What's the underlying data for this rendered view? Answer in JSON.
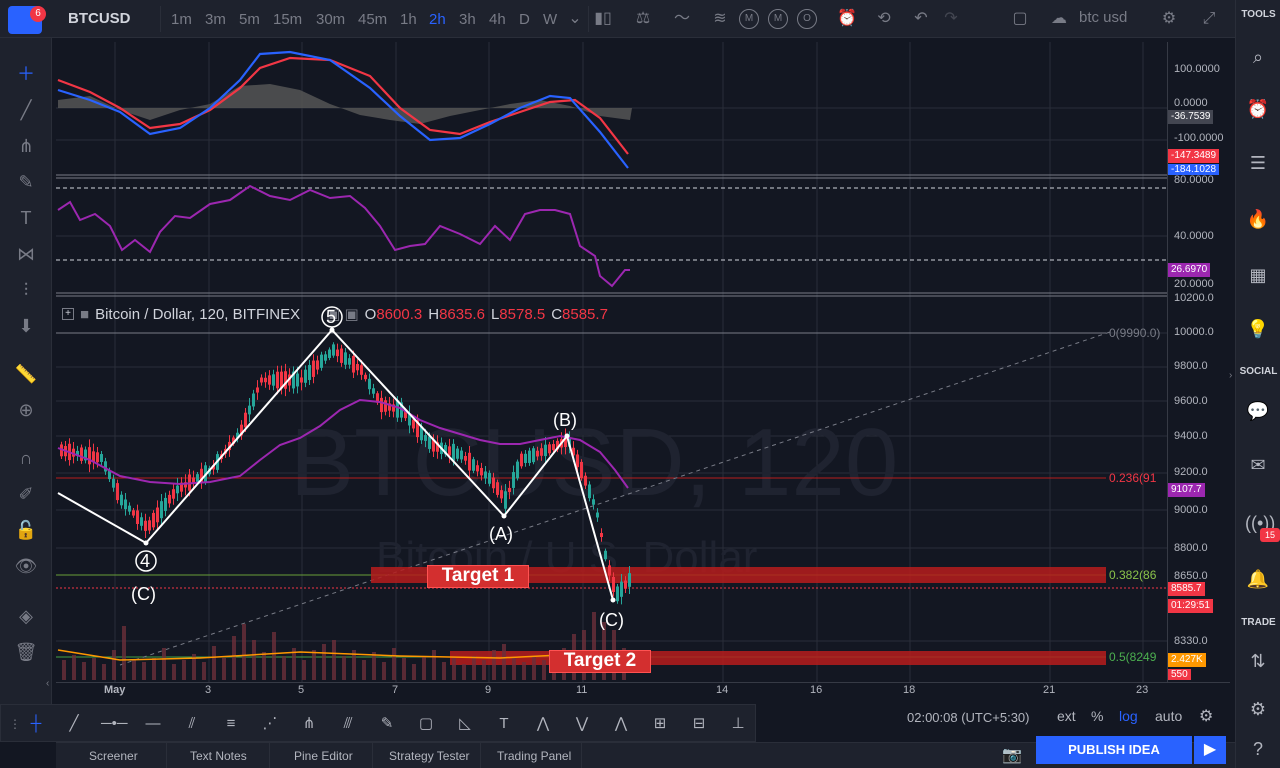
{
  "header": {
    "symbol": "BTCUSD",
    "notification_count": "6",
    "timeframes": [
      "1m",
      "3m",
      "5m",
      "15m",
      "30m",
      "45m",
      "1h",
      "2h",
      "3h",
      "4h",
      "D",
      "W"
    ],
    "active_timeframe": "2h",
    "indicator_icons": [
      "M",
      "M",
      "O"
    ],
    "search_value": "btc usd"
  },
  "right_panel": {
    "tools_label": "TOOLS",
    "social_label": "SOCIAL",
    "trade_label": "TRADE",
    "notif_badge": "15"
  },
  "chart": {
    "legend": {
      "title": "Bitcoin / Dollar, 120, BITFINEX",
      "o_label": "O",
      "o_value": "8600.3",
      "h_label": "H",
      "h_value": "8635.6",
      "l_label": "L",
      "l_value": "8578.5",
      "c_label": "C",
      "c_value": "8585.7"
    },
    "watermark": "BTCUSD, 120",
    "watermark_sub": "Bitcoin / U.S. Dollar",
    "target1": "Target 1",
    "target2": "Target 2",
    "waves": [
      "4",
      "(C)",
      "5",
      "(A)",
      "(B)",
      "(C)"
    ],
    "fib": [
      "0(9990.0)",
      "0.236(91",
      "0.382(86",
      "0.5(8249"
    ],
    "price_axis": [
      "10200.0",
      "10000.0",
      "9800.0",
      "9600.0",
      "9400.0",
      "9200.0",
      "9000.0",
      "8800.0",
      "8650.0",
      "8330.0"
    ],
    "price_tags": {
      "ma": "9107.7",
      "last": "8585.7",
      "countdown": "01:29:51",
      "vol": "2.427K",
      "vol2": "550"
    },
    "macd_axis": [
      "100.0000",
      "0.0000",
      "-100.0000"
    ],
    "macd_tags": {
      "hist": "-36.7539",
      "signal": "-147.3489",
      "macd": "-184.1028"
    },
    "rsi_axis": [
      "80.0000",
      "40.0000",
      "20.0000"
    ],
    "rsi_tag": "26.6970",
    "time_axis": [
      "May",
      "3",
      "5",
      "7",
      "9",
      "11",
      "14",
      "16",
      "18",
      "21",
      "23"
    ]
  },
  "status": {
    "time": "02:00:08 (UTC+5:30)",
    "ext": "ext",
    "percent": "%",
    "log": "log",
    "auto": "auto"
  },
  "bottom_tabs": [
    "Screener",
    "Text Notes",
    "Pine Editor",
    "Strategy Tester",
    "Trading Panel"
  ],
  "publish_label": "PUBLISH IDEA",
  "colors": {
    "accent": "#2962ff",
    "bear": "#f23645",
    "bull": "#26a69a",
    "rsi": "#9c27b0"
  }
}
